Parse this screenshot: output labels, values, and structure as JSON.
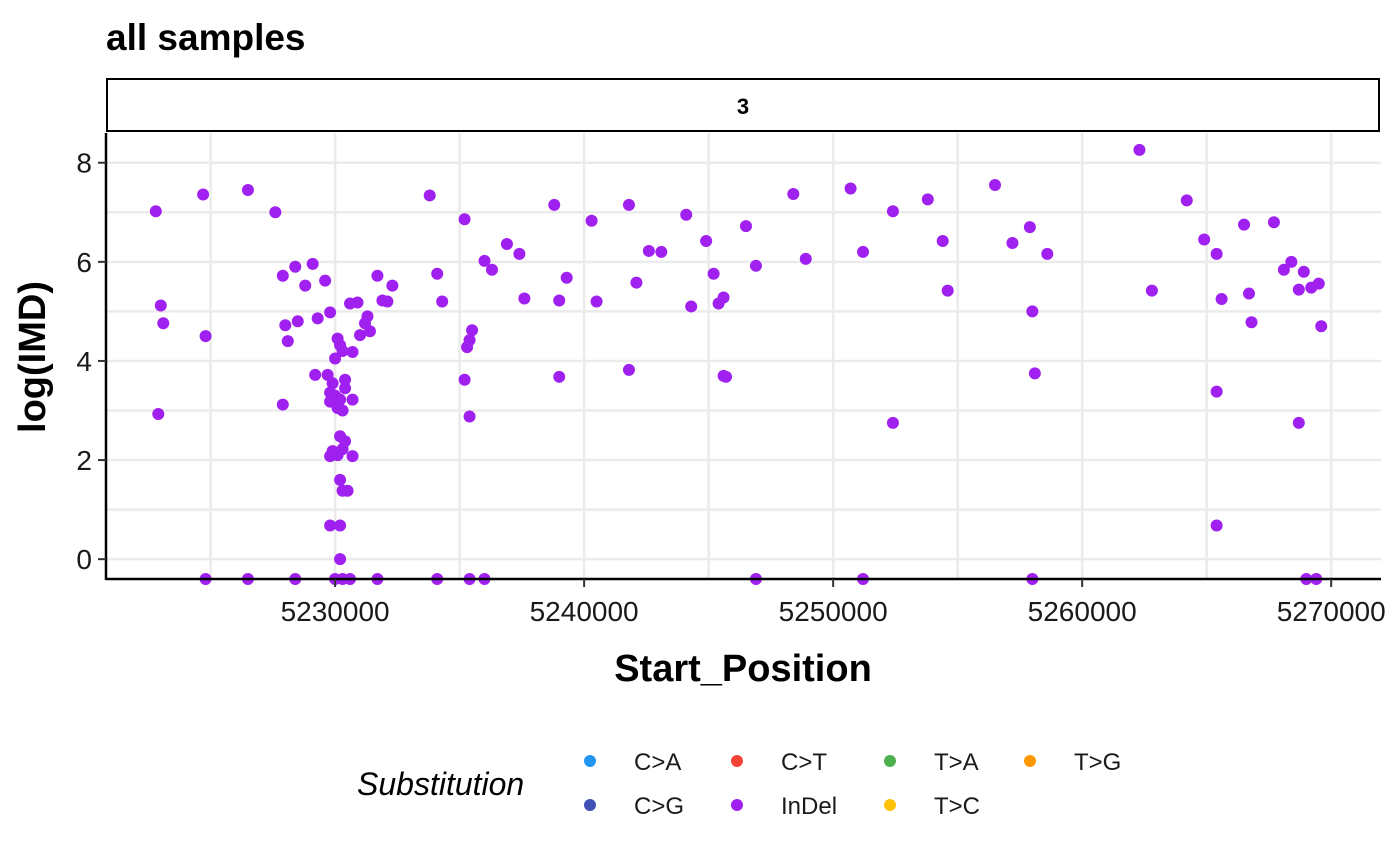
{
  "chart_data": {
    "type": "scatter",
    "title": "all samples",
    "facet_label": "3",
    "xlabel": "Start_Position",
    "ylabel": "log(IMD)",
    "xlim": [
      5220800,
      5272000
    ],
    "ylim": [
      -0.4,
      8.6
    ],
    "x_ticks": [
      5230000,
      5240000,
      5250000,
      5260000,
      5270000
    ],
    "y_ticks": [
      0,
      2,
      4,
      6,
      8
    ],
    "grid": true,
    "legend": {
      "title": "Substitution",
      "position": "bottom",
      "entries": [
        {
          "label": "C>A",
          "color": "#2196F3"
        },
        {
          "label": "C>G",
          "color": "#3F51B5"
        },
        {
          "label": "C>T",
          "color": "#F44336"
        },
        {
          "label": "InDel",
          "color": "#A020F0"
        },
        {
          "label": "T>A",
          "color": "#4CAF50"
        },
        {
          "label": "T>C",
          "color": "#FFC107"
        },
        {
          "label": "T>G",
          "color": "#FF9800"
        }
      ]
    },
    "series": [
      {
        "name": "InDel",
        "color": "#A020F0",
        "points": [
          [
            5222800,
            7.02
          ],
          [
            5223000,
            5.12
          ],
          [
            5223100,
            4.76
          ],
          [
            5222900,
            2.93
          ],
          [
            5224700,
            7.36
          ],
          [
            5224800,
            4.5
          ],
          [
            5224800,
            -0.4
          ],
          [
            5226500,
            7.45
          ],
          [
            5226500,
            -0.4
          ],
          [
            5227600,
            7.0
          ],
          [
            5227900,
            5.72
          ],
          [
            5228000,
            4.72
          ],
          [
            5228100,
            4.4
          ],
          [
            5227900,
            3.12
          ],
          [
            5228400,
            5.9
          ],
          [
            5228500,
            4.8
          ],
          [
            5228800,
            5.52
          ],
          [
            5228400,
            -0.4
          ],
          [
            5229100,
            5.96
          ],
          [
            5229200,
            3.72
          ],
          [
            5229300,
            4.86
          ],
          [
            5229600,
            5.62
          ],
          [
            5229800,
            4.98
          ],
          [
            5229700,
            3.72
          ],
          [
            5229800,
            3.36
          ],
          [
            5229800,
            3.18
          ],
          [
            5229800,
            2.08
          ],
          [
            5229900,
            2.18
          ],
          [
            5229800,
            0.68
          ],
          [
            5229900,
            3.55
          ],
          [
            5230000,
            4.05
          ],
          [
            5230000,
            3.3
          ],
          [
            5230100,
            4.45
          ],
          [
            5230100,
            3.05
          ],
          [
            5230100,
            2.1
          ],
          [
            5230200,
            4.32
          ],
          [
            5230200,
            3.22
          ],
          [
            5230200,
            2.48
          ],
          [
            5230200,
            1.6
          ],
          [
            5230200,
            0.68
          ],
          [
            5230200,
            0.0
          ],
          [
            5230300,
            4.2
          ],
          [
            5230300,
            3.0
          ],
          [
            5230300,
            2.22
          ],
          [
            5230300,
            1.38
          ],
          [
            5230400,
            3.62
          ],
          [
            5230400,
            2.38
          ],
          [
            5230400,
            3.45
          ],
          [
            5230500,
            1.38
          ],
          [
            5230600,
            5.16
          ],
          [
            5230700,
            4.18
          ],
          [
            5230700,
            3.22
          ],
          [
            5230700,
            2.08
          ],
          [
            5230900,
            5.18
          ],
          [
            5231000,
            4.52
          ],
          [
            5231200,
            4.76
          ],
          [
            5231300,
            4.9
          ],
          [
            5231400,
            4.6
          ],
          [
            5230000,
            -0.4
          ],
          [
            5230300,
            -0.4
          ],
          [
            5230600,
            -0.4
          ],
          [
            5231700,
            5.72
          ],
          [
            5231900,
            5.22
          ],
          [
            5232100,
            5.2
          ],
          [
            5232300,
            5.52
          ],
          [
            5231700,
            -0.4
          ],
          [
            5233800,
            7.34
          ],
          [
            5234100,
            5.76
          ],
          [
            5234300,
            5.2
          ],
          [
            5234100,
            -0.4
          ],
          [
            5235200,
            6.86
          ],
          [
            5235200,
            3.62
          ],
          [
            5235300,
            4.28
          ],
          [
            5235400,
            4.42
          ],
          [
            5235400,
            2.88
          ],
          [
            5235500,
            4.62
          ],
          [
            5235400,
            -0.4
          ],
          [
            5236000,
            6.02
          ],
          [
            5236300,
            5.84
          ],
          [
            5236000,
            -0.4
          ],
          [
            5236900,
            6.36
          ],
          [
            5237400,
            6.16
          ],
          [
            5237600,
            5.26
          ],
          [
            5238800,
            7.15
          ],
          [
            5239000,
            5.22
          ],
          [
            5239000,
            3.68
          ],
          [
            5239300,
            5.68
          ],
          [
            5240300,
            6.83
          ],
          [
            5240500,
            5.2
          ],
          [
            5241800,
            7.15
          ],
          [
            5241800,
            3.82
          ],
          [
            5242100,
            5.58
          ],
          [
            5242600,
            6.22
          ],
          [
            5243100,
            6.2
          ],
          [
            5244100,
            6.95
          ],
          [
            5244300,
            5.1
          ],
          [
            5244900,
            6.42
          ],
          [
            5245200,
            5.76
          ],
          [
            5245400,
            5.16
          ],
          [
            5245600,
            5.28
          ],
          [
            5245600,
            3.7
          ],
          [
            5245700,
            3.68
          ],
          [
            5246500,
            6.72
          ],
          [
            5246900,
            5.92
          ],
          [
            5246900,
            -0.4
          ],
          [
            5248400,
            7.37
          ],
          [
            5248900,
            6.06
          ],
          [
            5250700,
            7.48
          ],
          [
            5251200,
            6.2
          ],
          [
            5251200,
            -0.4
          ],
          [
            5252400,
            7.02
          ],
          [
            5252400,
            2.75
          ],
          [
            5253800,
            7.26
          ],
          [
            5254400,
            6.42
          ],
          [
            5254600,
            5.42
          ],
          [
            5256500,
            7.55
          ],
          [
            5257200,
            6.38
          ],
          [
            5257900,
            6.7
          ],
          [
            5258000,
            5.0
          ],
          [
            5258100,
            3.75
          ],
          [
            5258000,
            -0.4
          ],
          [
            5258600,
            6.16
          ],
          [
            5262300,
            8.26
          ],
          [
            5262800,
            5.42
          ],
          [
            5264200,
            7.24
          ],
          [
            5264900,
            6.45
          ],
          [
            5265400,
            6.16
          ],
          [
            5265600,
            5.25
          ],
          [
            5265400,
            3.38
          ],
          [
            5265400,
            0.68
          ],
          [
            5266500,
            6.75
          ],
          [
            5266700,
            5.36
          ],
          [
            5266800,
            4.78
          ],
          [
            5267700,
            6.8
          ],
          [
            5268100,
            5.84
          ],
          [
            5268400,
            6.0
          ],
          [
            5268700,
            5.44
          ],
          [
            5268700,
            2.75
          ],
          [
            5268900,
            5.8
          ],
          [
            5269000,
            -0.4
          ],
          [
            5269200,
            5.48
          ],
          [
            5269500,
            5.56
          ],
          [
            5269600,
            4.7
          ],
          [
            5269400,
            -0.4
          ]
        ]
      }
    ]
  }
}
